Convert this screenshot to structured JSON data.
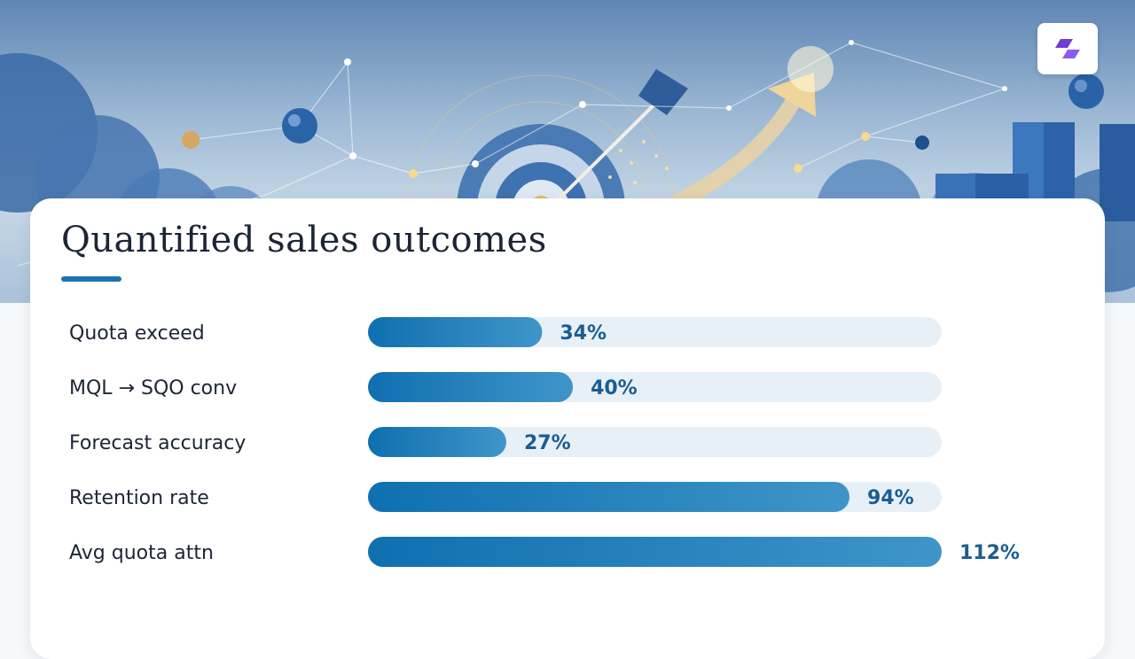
{
  "title": "Quantified sales outcomes",
  "logo": {
    "icon": "brand-logo-icon",
    "color": "#6b3fd8"
  },
  "colors": {
    "bar_start": "#0f6fb0",
    "bar_end": "#3f95c8",
    "track": "#e8f0f7",
    "value_text": "#1a5d92",
    "label_text": "#1c2535",
    "accent": "#1a73b0"
  },
  "chart_data": {
    "type": "bar",
    "orientation": "horizontal",
    "categories": [
      "Quota exceed",
      "MQL → SQO conv",
      "Forecast accuracy",
      "Retention rate",
      "Avg quota attn"
    ],
    "values": [
      34,
      40,
      27,
      94,
      112
    ],
    "value_labels": [
      "34%",
      "40%",
      "27%",
      "94%",
      "112%"
    ],
    "xlim": [
      0,
      112
    ],
    "grid": false,
    "legend": "none"
  }
}
